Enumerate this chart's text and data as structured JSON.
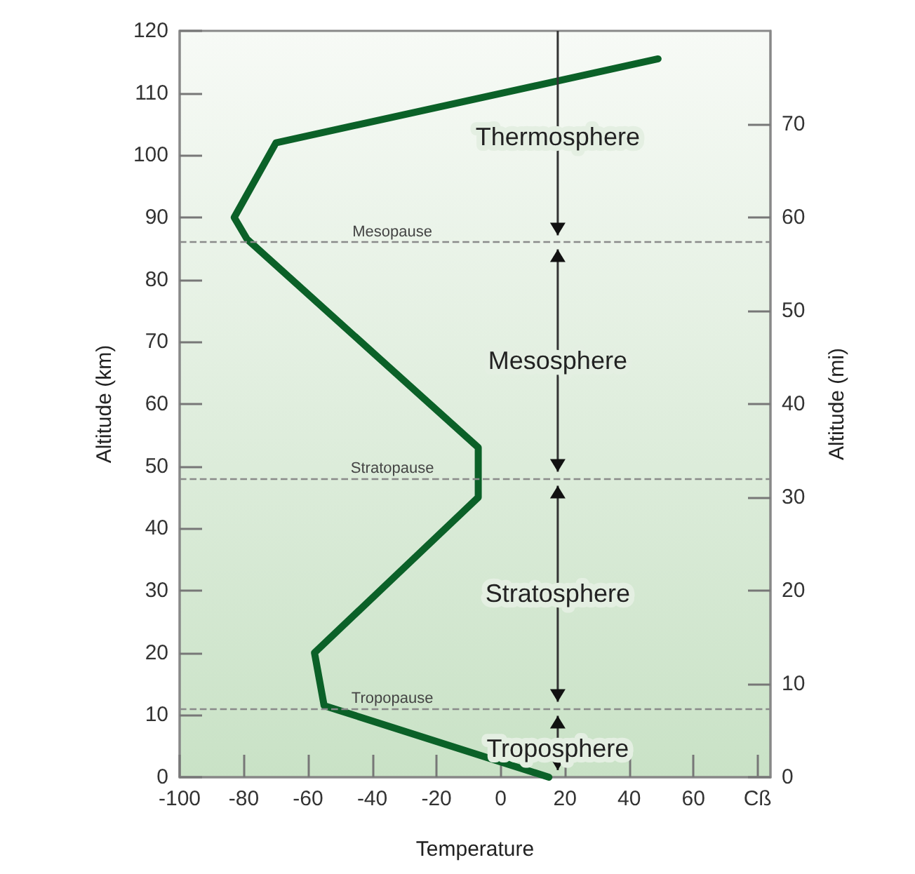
{
  "chart_data": {
    "type": "line",
    "xlabel": "Temperature",
    "ylabel": "Altitude (km)",
    "y2label": "Altitude (mi)",
    "series": [
      {
        "color": "#0b6128",
        "x": [
          15,
          -55,
          -58,
          -7,
          -7,
          -79,
          -83,
          -70,
          49
        ],
        "values": [
          0,
          11.5,
          20,
          45,
          53,
          86.5,
          90,
          102,
          115.5
        ]
      }
    ],
    "xlim": [
      -100,
      84
    ],
    "xticks": [
      -100,
      -80,
      -60,
      -40,
      -20,
      0,
      20,
      40,
      60,
      {
        "value": 80,
        "label": "Cß"
      }
    ],
    "ylim": [
      0,
      120
    ],
    "yticks": [
      0,
      10,
      20,
      30,
      40,
      50,
      60,
      70,
      80,
      90,
      100,
      110,
      120
    ],
    "y2lim": [
      0,
      80
    ],
    "y2ticks": [
      0,
      10,
      20,
      30,
      40,
      50,
      60,
      70
    ],
    "ref_lines": [
      {
        "axis": "y",
        "value": 86,
        "label": "Mesopause",
        "color": "#8a8a8a",
        "line_style": "dashed"
      },
      {
        "axis": "y",
        "value": 48,
        "label": "Stratopause",
        "color": "#8a8a8a",
        "line_style": "dashed"
      },
      {
        "axis": "y",
        "value": 11,
        "label": "Tropopause",
        "color": "#8a8a8a",
        "line_style": "dashed"
      }
    ],
    "annotations": [
      "Thermosphere",
      "Mesosphere",
      "Stratosphere",
      "Troposphere"
    ],
    "grid": false,
    "marker": "none",
    "line_style": "solid"
  }
}
